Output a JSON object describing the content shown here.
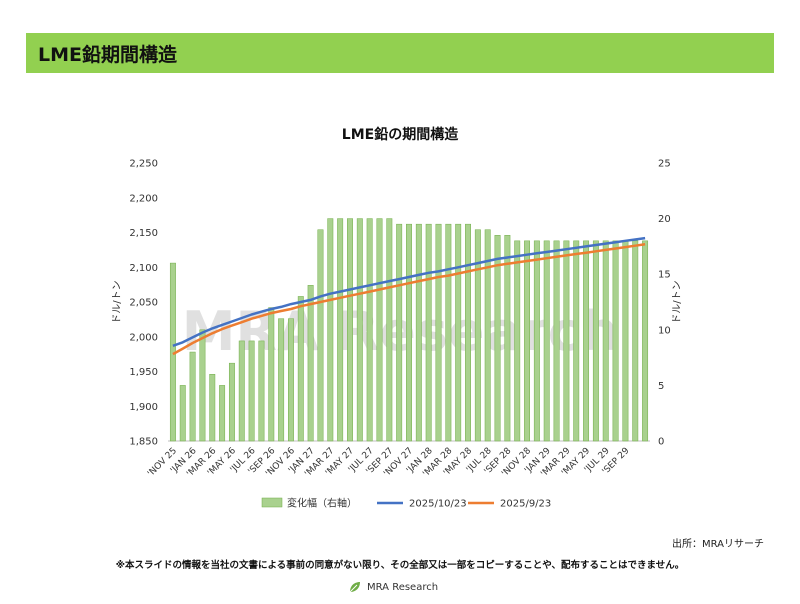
{
  "header": {
    "title": "LME鉛期間構造"
  },
  "watermark": "MRA Research",
  "source": "出所：MRAリサーチ",
  "disclaimer": "※本スライドの情報を当社の文書による事前の同意がない限り、その全部又は一部をコピーすることや、配布することはできません。",
  "footer": {
    "logo_text": "MRA Research"
  },
  "colors": {
    "header_bg": "#92d050",
    "bar": "#a9d18e",
    "bar_border": "#70ad47",
    "series_1": "#4472c4",
    "series_2": "#ed7d31"
  },
  "chart_data": {
    "type": "bar+line",
    "title": "LME鉛の期間構造",
    "ylabel_left": "ドル/トン",
    "ylabel_right": "ドル/トン",
    "ylim_left": [
      1850,
      2250
    ],
    "yticks_left": [
      "1,850",
      "1,900",
      "1,950",
      "2,000",
      "2,050",
      "2,100",
      "2,150",
      "2,200",
      "2,250"
    ],
    "ylim_right": [
      0,
      25
    ],
    "yticks_right": [
      "0",
      "5",
      "10",
      "15",
      "20",
      "25"
    ],
    "x_tick_labels": [
      "'NOV 25",
      "'JAN 26",
      "'MAR 26",
      "'MAY 26",
      "'JUL 26",
      "'SEP 26",
      "'NOV 26",
      "'JAN 27",
      "'MAR 27",
      "'MAY 27",
      "'JUL 27",
      "'SEP 27",
      "'NOV 27",
      "'JAN 28",
      "'MAR 28",
      "'MAY 28",
      "'JUL 28",
      "'SEP 28",
      "'NOV 28",
      "'JAN 29",
      "'MAR 29",
      "'MAY 29",
      "'JUL 29",
      "'SEP 29"
    ],
    "bar_series": {
      "name": "変化幅（右軸）",
      "values": [
        16,
        5,
        8,
        10,
        6,
        5,
        7,
        9,
        9,
        9,
        12,
        11,
        11,
        13,
        14,
        19,
        20,
        20,
        20,
        20,
        20,
        20,
        20,
        19.5,
        19.5,
        19.5,
        19.5,
        19.5,
        19.5,
        19.5,
        19.5,
        19,
        19,
        18.5,
        18.5,
        18,
        18,
        18,
        18,
        18,
        18,
        18,
        18,
        18,
        18,
        18,
        18,
        18,
        18
      ]
    },
    "series": [
      {
        "name": "2025/10/23",
        "values": [
          1987,
          1992,
          1999,
          2006,
          2012,
          2017,
          2022,
          2027,
          2032,
          2036,
          2040,
          2043,
          2047,
          2050,
          2053,
          2058,
          2062,
          2065,
          2068,
          2071,
          2074,
          2077,
          2080,
          2083,
          2086,
          2089,
          2092,
          2094,
          2097,
          2100,
          2103,
          2106,
          2109,
          2112,
          2114,
          2116,
          2118,
          2120,
          2122,
          2124,
          2126,
          2128,
          2130,
          2132,
          2134,
          2136,
          2138,
          2140,
          2142
        ]
      },
      {
        "name": "2025/9/23",
        "values": [
          1975,
          1983,
          1991,
          1998,
          2005,
          2011,
          2016,
          2021,
          2026,
          2030,
          2034,
          2037,
          2040,
          2044,
          2047,
          2050,
          2053,
          2056,
          2059,
          2062,
          2065,
          2068,
          2071,
          2074,
          2077,
          2080,
          2083,
          2086,
          2088,
          2091,
          2094,
          2097,
          2100,
          2103,
          2105,
          2107,
          2109,
          2111,
          2113,
          2115,
          2117,
          2119,
          2121,
          2123,
          2125,
          2127,
          2129,
          2131,
          2133
        ]
      }
    ],
    "legend": "bottom"
  }
}
